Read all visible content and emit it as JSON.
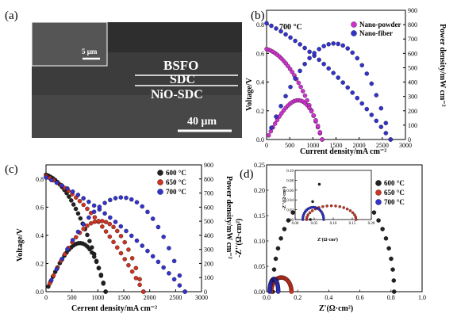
{
  "panels": [
    {
      "id": "a",
      "label": "(a)",
      "type": "micrograph",
      "layers": [
        "BSFO",
        "SDC",
        "NiO-SDC"
      ],
      "inset_scale_text": "5 μm",
      "scale_text": "40 μm",
      "colors": {
        "background": "#3c3c3c",
        "text": "#ffffff"
      }
    }
  ],
  "chart_data": [
    {
      "panel": "b",
      "label": "(b)",
      "type": "scatter",
      "annotation": "700 °C",
      "xlabel": "Current density/mA cm⁻²",
      "ylabel_left": "Voltage/V",
      "ylabel_right": "Power density/mW cm⁻²",
      "xlim": [
        0,
        3000
      ],
      "xticks": [
        0,
        500,
        1000,
        1500,
        2000,
        2500,
        3000
      ],
      "ylim_left": [
        0,
        0.9
      ],
      "yticks_left": [
        0.0,
        0.2,
        0.4,
        0.6,
        0.8
      ],
      "ylim_right": [
        0,
        900
      ],
      "yticks_right": [
        0,
        100,
        200,
        300,
        400,
        500,
        600,
        700,
        800,
        900
      ],
      "legend_position": "top-right",
      "series": [
        {
          "name": "Nano-powder",
          "color": "#cc33cc",
          "ocv": 0.63,
          "jmax": 1200,
          "pmax": 265,
          "jpeak": 780
        },
        {
          "name": "Nano-fiber",
          "color": "#3333cc",
          "ocv": 0.81,
          "jmax": 2680,
          "pmax": 665,
          "jpeak": 1560
        }
      ]
    },
    {
      "panel": "c",
      "label": "(c)",
      "type": "scatter",
      "xlabel": "Cerrent density/mA cm⁻²",
      "ylabel_left": "Voltage/V",
      "ylabel_right": "Power density/mW cm⁻²",
      "xlim": [
        0,
        3000
      ],
      "xticks": [
        0,
        500,
        1000,
        1500,
        2000,
        2500,
        3000
      ],
      "ylim_left": [
        0,
        0.9
      ],
      "yticks_left": [
        0.0,
        0.2,
        0.4,
        0.6,
        0.8
      ],
      "ylim_right": [
        0,
        900
      ],
      "yticks_right": [
        0,
        100,
        200,
        300,
        400,
        500,
        600,
        700,
        800,
        900
      ],
      "legend_position": "top-right",
      "series": [
        {
          "name": "600 °C",
          "color": "#222222",
          "ocv": 0.83,
          "jmax": 1150,
          "pmax": 340,
          "jpeak": 720
        },
        {
          "name": "650 °C",
          "color": "#cc3322",
          "ocv": 0.82,
          "jmax": 1880,
          "pmax": 495,
          "jpeak": 1150
        },
        {
          "name": "700 °C",
          "color": "#3333cc",
          "ocv": 0.81,
          "jmax": 2680,
          "pmax": 665,
          "jpeak": 1560
        }
      ]
    },
    {
      "panel": "d",
      "label": "(d)",
      "type": "scatter",
      "xlabel": "Z'(Ω·cm²)",
      "ylabel": "-Z''(Ω·cm²)",
      "xlim": [
        0,
        1.0
      ],
      "xticks": [
        0.0,
        0.2,
        0.4,
        0.6,
        0.8,
        1.0
      ],
      "ylim": [
        0,
        0.25
      ],
      "yticks": [
        0.0,
        0.05,
        0.1,
        0.15,
        0.2,
        0.25
      ],
      "legend_position": "top-right",
      "series": [
        {
          "name": "600 °C",
          "color": "#222222",
          "r0": 0.04,
          "r1": 0.82,
          "peak": 0.21
        },
        {
          "name": "650 °C",
          "color": "#cc3322",
          "r0": 0.03,
          "r1": 0.16,
          "peak": 0.028
        },
        {
          "name": "700 °C",
          "color": "#3333cc",
          "r0": 0.02,
          "r1": 0.075,
          "peak": 0.025
        }
      ],
      "inset": {
        "xlabel": "Z'(Ω·cm²)",
        "ylabel": "-Z''(Ω·cm²)",
        "xlim": [
          0,
          0.2
        ],
        "xticks": [
          0.0,
          0.05,
          0.1,
          0.15,
          0.2
        ],
        "ylim": [
          0,
          0.1
        ],
        "yticks": [
          0.0,
          0.02,
          0.04,
          0.06,
          0.08,
          0.1
        ]
      }
    }
  ]
}
